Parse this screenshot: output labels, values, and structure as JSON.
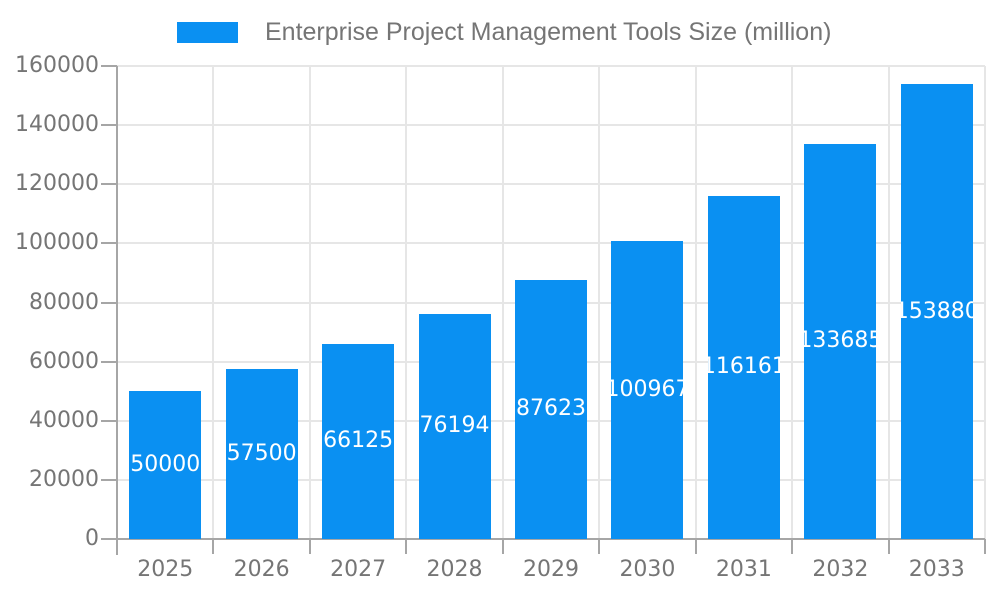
{
  "chart_data": {
    "type": "bar",
    "title": "Enterprise Project Management Tools Size (million)",
    "legend_position": "top",
    "categories": [
      "2025",
      "2026",
      "2027",
      "2028",
      "2029",
      "2030",
      "2031",
      "2032",
      "2033"
    ],
    "values": [
      50000,
      57500,
      66125,
      76194,
      87623,
      100967,
      116161,
      133685,
      153880
    ],
    "value_labels": [
      "50000",
      "57500",
      "66125",
      "76194",
      "87623",
      "100967",
      "116161",
      "133685",
      "153880"
    ],
    "value_label_position": "inside-center",
    "xlabel": "",
    "ylabel": "",
    "ylim": [
      0,
      160000
    ],
    "y_ticks": [
      0,
      20000,
      40000,
      60000,
      80000,
      100000,
      120000,
      140000,
      160000
    ],
    "grid": "on",
    "colors": {
      "bar": "#0a90f2",
      "value_text": "#ffffff",
      "tick_text": "#757575",
      "title_text": "#757575",
      "gridline": "#e6e6e6",
      "axis": "#a6a6a6",
      "background": "#ffffff"
    }
  }
}
